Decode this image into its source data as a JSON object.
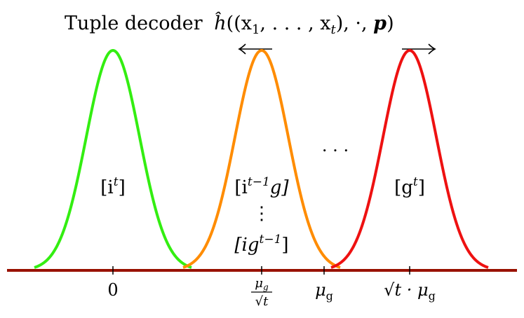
{
  "title": {
    "text": "Tuple decoder",
    "func": "ĥ",
    "args": "((x",
    "sub1": "1",
    "mid": ", . . . , x",
    "subt": "t",
    "tail": "), ·, ",
    "p": "p",
    "close": ")"
  },
  "curves": [
    {
      "name": "green",
      "color": "#33ee11",
      "label_base": "[i",
      "label_sup": "t",
      "label_end": "]"
    },
    {
      "name": "orange",
      "color": "#ff8c00",
      "label_base": "[i",
      "label_sup": "t−1",
      "label_end": "g]"
    },
    {
      "name": "red",
      "color": "#ee1111",
      "label_base": "[g",
      "label_sup": "t",
      "label_end": "]"
    }
  ],
  "orange_extra": {
    "vdots": "⋮",
    "label2_base": "[ig",
    "label2_sup": "t−1",
    "label2_end": "]"
  },
  "ellipsis": ". . .",
  "axis": {
    "color": "#991100",
    "tick0": "0",
    "tick1_num": "μ",
    "tick1_num_sub": "g",
    "tick1_den": "√t",
    "tick2": "μ",
    "tick2_sub": "g",
    "tick3_sqrt": "√t",
    "tick3_dot": " · μ",
    "tick3_sub": "g"
  },
  "arrows": {
    "orange": "left",
    "red": "right"
  }
}
